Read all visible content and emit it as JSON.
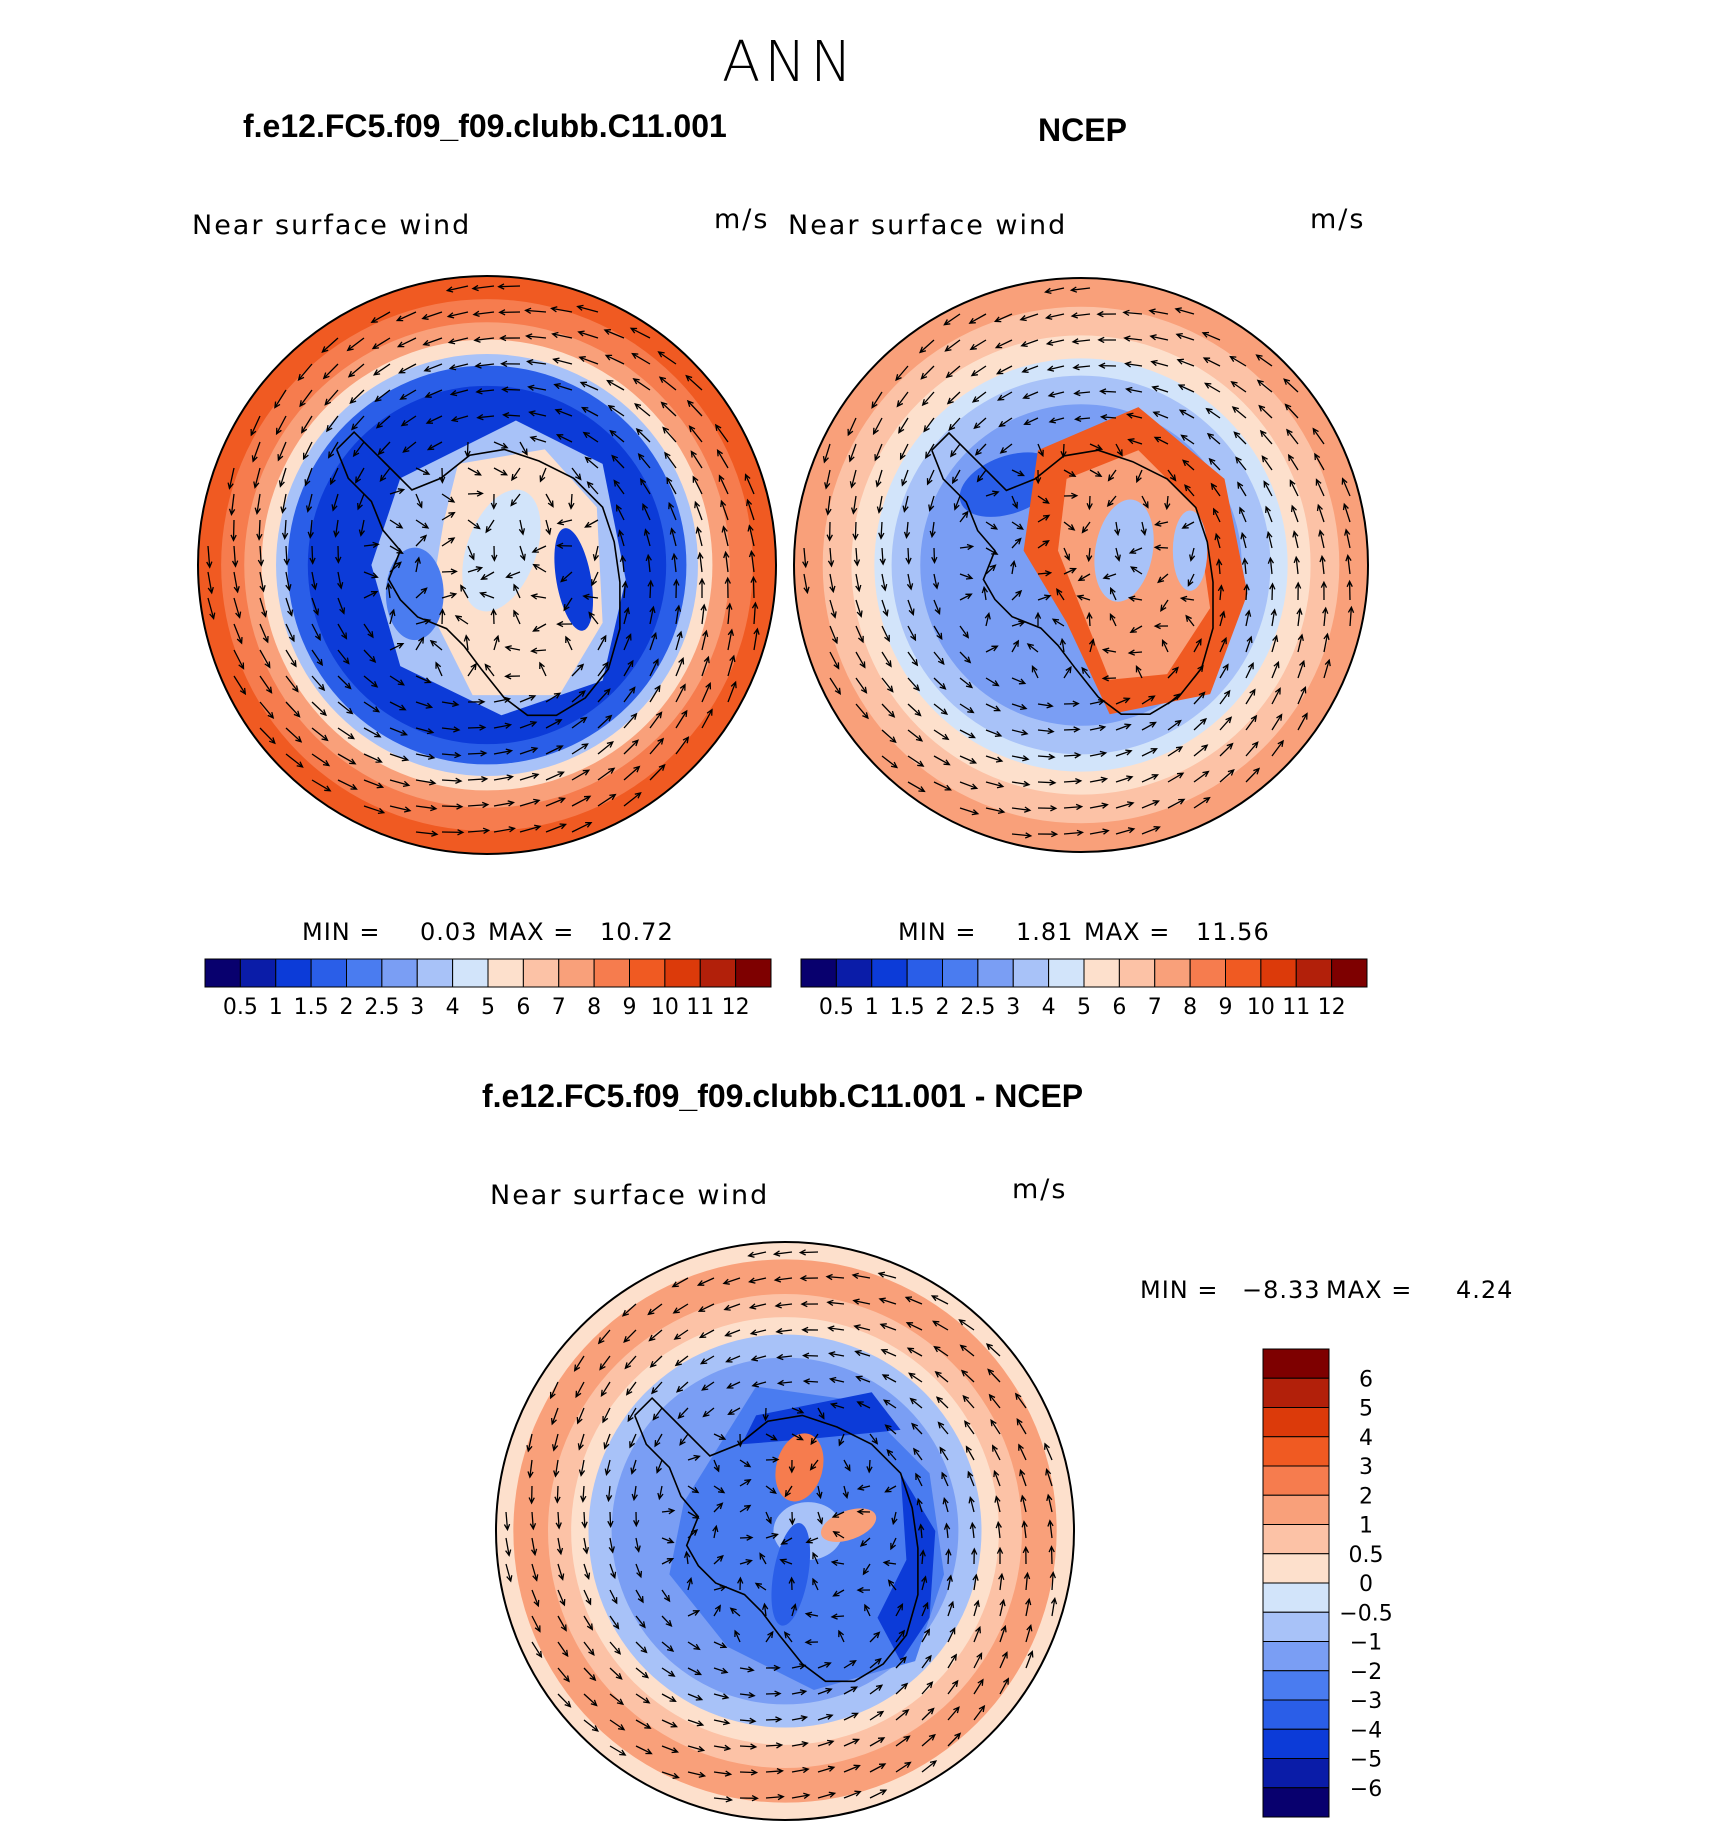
{
  "season": "ANN",
  "panels": [
    {
      "title": "f.e12.FC5.f09_f09.clubb.C11.001",
      "left_label": "Near surface wind",
      "right_label": "m/s",
      "min_label": "MIN =",
      "min_value": "0.03",
      "max_label": "MAX =",
      "max_value": "10.72"
    },
    {
      "title": "NCEP",
      "left_label": "Near surface wind",
      "right_label": "m/s",
      "min_label": "MIN =",
      "min_value": "1.81",
      "max_label": "MAX =",
      "max_value": "11.56"
    },
    {
      "title": "f.e12.FC5.f09_f09.clubb.C11.001 - NCEP",
      "left_label": "Near surface wind",
      "right_label": "m/s",
      "min_label": "MIN =",
      "min_value": "−8.33",
      "max_label": "MAX =",
      "max_value": "4.24"
    }
  ],
  "colorbars": {
    "abs": {
      "levels": [
        "0.5",
        "1",
        "1.5",
        "2",
        "2.5",
        "3",
        "4",
        "5",
        "6",
        "7",
        "8",
        "9",
        "10",
        "11",
        "12"
      ],
      "colors": [
        "#08006e",
        "#0a1ca8",
        "#0c3bd8",
        "#2a5ee8",
        "#4a7cf0",
        "#7a9ef4",
        "#a8c2f8",
        "#d2e4fa",
        "#fde0cc",
        "#fcc2a6",
        "#f9a07a",
        "#f67c4e",
        "#f05a22",
        "#dc3a0a",
        "#b2200a",
        "#7e0000"
      ]
    },
    "diff": {
      "levels": [
        "6",
        "5",
        "4",
        "3",
        "2",
        "1",
        "0.5",
        "0",
        "−0.5",
        "−1",
        "−2",
        "−3",
        "−4",
        "−5",
        "−6"
      ],
      "colors": [
        "#7e0000",
        "#b2200a",
        "#dc3a0a",
        "#f05a22",
        "#f67c4e",
        "#f9a07a",
        "#fcc2a6",
        "#fde0cc",
        "#d2e4fa",
        "#a8c2f8",
        "#7a9ef4",
        "#4a7cf0",
        "#2a5ee8",
        "#0c3bd8",
        "#0a1ca8",
        "#08006e"
      ]
    }
  },
  "chart_data": [
    {
      "type": "heatmap",
      "title": "f.e12.FC5.f09_f09.clubb.C11.001",
      "variable": "Near surface wind",
      "units": "m/s",
      "projection": "south polar stereographic",
      "min": 0.03,
      "max": 10.72,
      "contour_levels": [
        0.5,
        1,
        1.5,
        2,
        2.5,
        3,
        4,
        5,
        6,
        7,
        8,
        9,
        10,
        11,
        12
      ],
      "vectors": true
    },
    {
      "type": "heatmap",
      "title": "NCEP",
      "variable": "Near surface wind",
      "units": "m/s",
      "projection": "south polar stereographic",
      "min": 1.81,
      "max": 11.56,
      "contour_levels": [
        0.5,
        1,
        1.5,
        2,
        2.5,
        3,
        4,
        5,
        6,
        7,
        8,
        9,
        10,
        11,
        12
      ],
      "vectors": true
    },
    {
      "type": "heatmap",
      "title": "f.e12.FC5.f09_f09.clubb.C11.001 - NCEP",
      "variable": "Near surface wind",
      "units": "m/s",
      "projection": "south polar stereographic",
      "min": -8.33,
      "max": 4.24,
      "contour_levels": [
        -6,
        -5,
        -4,
        -3,
        -2,
        -1,
        -0.5,
        0,
        0.5,
        1,
        2,
        3,
        4,
        5,
        6
      ],
      "vectors": true
    }
  ]
}
